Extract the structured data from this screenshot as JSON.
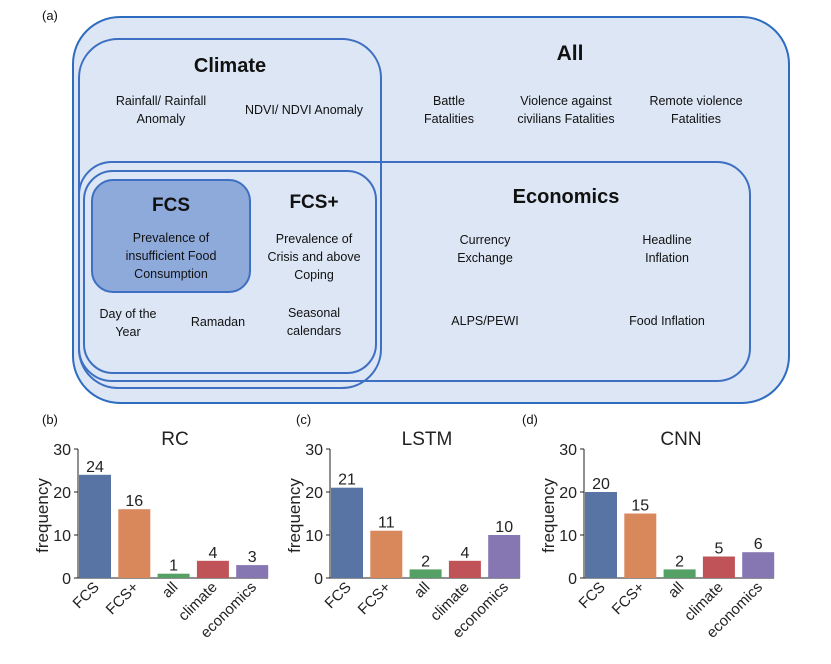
{
  "panel_labels": {
    "a": "(a)",
    "b": "(b)",
    "c": "(c)",
    "d": "(d)"
  },
  "diagram": {
    "all": {
      "title": "All",
      "items": [
        [
          "Battle",
          "Fatalities"
        ],
        [
          "Violence against",
          "civilians Fatalities"
        ],
        [
          "Remote violence",
          "Fatalities"
        ]
      ]
    },
    "climate": {
      "title": "Climate",
      "items": [
        [
          "Rainfall/ Rainfall",
          "Anomaly"
        ],
        [
          "NDVI/ NDVI Anomaly"
        ]
      ]
    },
    "fcs_plus": {
      "title": "FCS+",
      "items": [
        [
          "Prevalence of",
          "Crisis and above",
          "Coping"
        ],
        [
          "Day of the",
          "Year"
        ],
        [
          "Ramadan"
        ],
        [
          "Seasonal",
          "calendars"
        ]
      ]
    },
    "fcs": {
      "title": "FCS",
      "items": [
        [
          "Prevalence of",
          "insufficient Food",
          "Consumption"
        ]
      ]
    },
    "economics": {
      "title": "Economics",
      "items": [
        [
          "Currency",
          "Exchange"
        ],
        [
          "Headline",
          "Inflation"
        ],
        [
          "ALPS/PEWI"
        ],
        [
          "Food Inflation"
        ]
      ]
    }
  },
  "chart_data": [
    {
      "type": "bar",
      "title": "RC",
      "categories": [
        "FCS",
        "FCS+",
        "all",
        "climate",
        "economics"
      ],
      "values": [
        24,
        16,
        1,
        4,
        3
      ],
      "xlabel": "",
      "ylabel": "frequency",
      "ylim": [
        0,
        30
      ],
      "yticks": [
        0,
        10,
        20,
        30
      ],
      "grid": false
    },
    {
      "type": "bar",
      "title": "LSTM",
      "categories": [
        "FCS",
        "FCS+",
        "all",
        "climate",
        "economics"
      ],
      "values": [
        21,
        11,
        2,
        4,
        10
      ],
      "xlabel": "",
      "ylabel": "frequency",
      "ylim": [
        0,
        30
      ],
      "yticks": [
        0,
        10,
        20,
        30
      ],
      "grid": false
    },
    {
      "type": "bar",
      "title": "CNN",
      "categories": [
        "FCS",
        "FCS+",
        "all",
        "climate",
        "economics"
      ],
      "values": [
        20,
        15,
        2,
        5,
        6
      ],
      "xlabel": "",
      "ylabel": "frequency",
      "ylim": [
        0,
        30
      ],
      "yticks": [
        0,
        10,
        20,
        30
      ],
      "grid": false
    }
  ],
  "colors": {
    "box_border": "#3d6fc2",
    "outer_fill": "#dce6f4",
    "fcs_fill": "#8eaadb",
    "bars": [
      "#5874a4",
      "#d9885c",
      "#55a064",
      "#c05358",
      "#8676b2"
    ]
  }
}
